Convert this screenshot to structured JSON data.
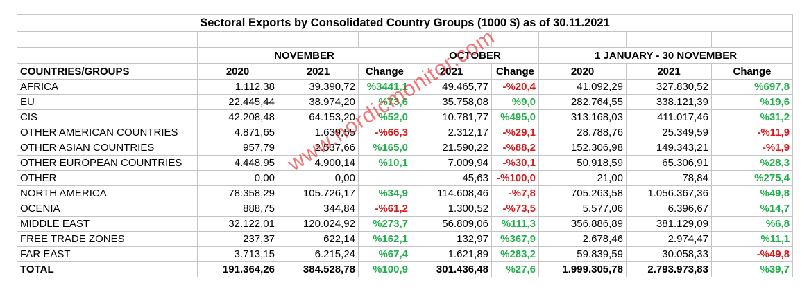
{
  "title": "Sectoral Exports by Consolidated Country Groups  (1000 $) as of 30.11.2021",
  "periods": {
    "november": "NOVEMBER",
    "october": "OCTOBER",
    "range": "1 JANUARY  -  30 NOVEMBER"
  },
  "headers": {
    "countries": "COUNTRIES/GROUPS",
    "nov_2020": "2020",
    "nov_2021": "2021",
    "nov_change": "Change",
    "oct_2021": "2021",
    "oct_change": "Change",
    "ytd_2020": "2020",
    "ytd_2021": "2021",
    "ytd_change": "Change"
  },
  "rows": [
    {
      "name": "AFRICA",
      "nov2020": "1.112,38",
      "nov2021": "39.390,72",
      "novChg": "%3441,1",
      "oct2021": "49.465,77",
      "octChg": "-%20,4",
      "ytd2020": "41.092,29",
      "ytd2021": "327.830,52",
      "ytdChg": "%697,8"
    },
    {
      "name": "EU",
      "nov2020": "22.445,44",
      "nov2021": "38.974,20",
      "novChg": "%73,6",
      "oct2021": "35.758,08",
      "octChg": "%9,0",
      "ytd2020": "282.764,55",
      "ytd2021": "338.121,39",
      "ytdChg": "%19,6"
    },
    {
      "name": "CIS",
      "nov2020": "42.208,48",
      "nov2021": "64.153,20",
      "novChg": "%52,0",
      "oct2021": "10.781,77",
      "octChg": "%495,0",
      "ytd2020": "313.168,03",
      "ytd2021": "411.017,46",
      "ytdChg": "%31,2"
    },
    {
      "name": "OTHER AMERICAN COUNTRIES",
      "nov2020": "4.871,65",
      "nov2021": "1.639,55",
      "novChg": "-%66,3",
      "oct2021": "2.312,17",
      "octChg": "-%29,1",
      "ytd2020": "28.788,76",
      "ytd2021": "25.349,59",
      "ytdChg": "-%11,9"
    },
    {
      "name": "OTHER ASIAN COUNTRIES",
      "nov2020": "957,79",
      "nov2021": "2.537,66",
      "novChg": "%165,0",
      "oct2021": "21.590,22",
      "octChg": "-%88,2",
      "ytd2020": "152.306,98",
      "ytd2021": "149.343,21",
      "ytdChg": "-%1,9"
    },
    {
      "name": "OTHER EUROPEAN COUNTRIES",
      "nov2020": "4.448,95",
      "nov2021": "4.900,14",
      "novChg": "%10,1",
      "oct2021": "7.009,94",
      "octChg": "-%30,1",
      "ytd2020": "50.918,59",
      "ytd2021": "65.306,91",
      "ytdChg": "%28,3"
    },
    {
      "name": "OTHER",
      "nov2020": "0,00",
      "nov2021": "0,00",
      "novChg": "",
      "oct2021": "45,63",
      "octChg": "-%100,0",
      "ytd2020": "21,00",
      "ytd2021": "78,84",
      "ytdChg": "%275,4"
    },
    {
      "name": "NORTH AMERICA",
      "nov2020": "78.358,29",
      "nov2021": "105.726,17",
      "novChg": "%34,9",
      "oct2021": "114.608,46",
      "octChg": "-%7,8",
      "ytd2020": "705.263,58",
      "ytd2021": "1.056.367,36",
      "ytdChg": "%49,8"
    },
    {
      "name": "OCENIA",
      "nov2020": "888,75",
      "nov2021": "344,84",
      "novChg": "-%61,2",
      "oct2021": "1.300,52",
      "octChg": "-%73,5",
      "ytd2020": "5.577,06",
      "ytd2021": "6.396,67",
      "ytdChg": "%14,7"
    },
    {
      "name": "MIDDLE EAST",
      "nov2020": "32.122,01",
      "nov2021": "120.024,92",
      "novChg": "%273,7",
      "oct2021": "56.809,06",
      "octChg": "%111,3",
      "ytd2020": "356.886,89",
      "ytd2021": "381.129,09",
      "ytdChg": "%6,8"
    },
    {
      "name": "FREE TRADE ZONES",
      "nov2020": "237,37",
      "nov2021": "622,14",
      "novChg": "%162,1",
      "oct2021": "132,97",
      "octChg": "%367,9",
      "ytd2020": "2.678,46",
      "ytd2021": "2.974,47",
      "ytdChg": "%11,1"
    },
    {
      "name": "FAR EAST",
      "nov2020": "3.713,15",
      "nov2021": "6.215,24",
      "novChg": "%67,4",
      "oct2021": "1.621,89",
      "octChg": "%283,2",
      "ytd2020": "59.839,59",
      "ytd2021": "30.058,33",
      "ytdChg": "-%49,8"
    }
  ],
  "total": {
    "name": "TOTAL",
    "nov2020": "191.364,26",
    "nov2021": "384.528,78",
    "novChg": "%100,9",
    "oct2021": "301.436,48",
    "octChg": "%27,6",
    "ytd2020": "1.999.305,78",
    "ytd2021": "2.793.973,83",
    "ytdChg": "%39,7"
  },
  "colors": {
    "positive": "#21b04b",
    "negative": "#d7191c",
    "grid": "#c4c4c4",
    "watermark": "#e62828"
  },
  "watermark": "www.nordicmonitor.com"
}
